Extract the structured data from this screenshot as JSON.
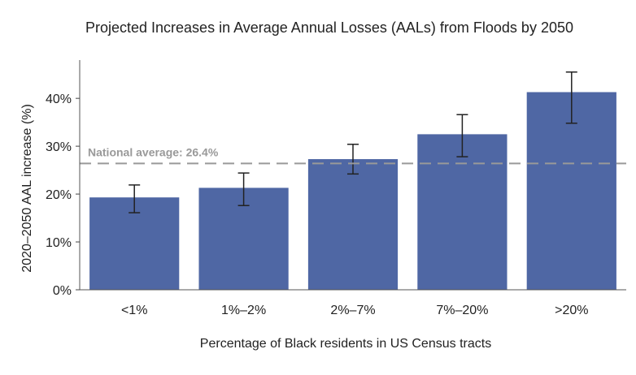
{
  "chart_data": {
    "type": "bar",
    "title": "Projected Increases in Average Annual Losses (AALs) from Floods by 2050",
    "xlabel": "Percentage of Black residents in US Census tracts",
    "ylabel": "2020–2050 AAL increase (%)",
    "categories": [
      "<1%",
      "1%–2%",
      "2%–7%",
      "7%–20%",
      ">20%"
    ],
    "values": [
      19.3,
      21.3,
      27.3,
      32.5,
      41.3
    ],
    "error_low": [
      16.1,
      17.6,
      24.2,
      27.8,
      34.8
    ],
    "error_high": [
      21.9,
      24.4,
      30.4,
      36.6,
      45.5
    ],
    "ylim": [
      0,
      48
    ],
    "yticks": [
      0,
      10,
      20,
      30,
      40
    ],
    "ytick_labels": [
      "0%",
      "10%",
      "20%",
      "30%",
      "40%"
    ],
    "grid": false,
    "bar_color": "#4f67a4",
    "error_color": "#222222",
    "reference_line": {
      "value": 26.4,
      "label": "National average: 26.4%",
      "color": "#999999",
      "style": "dashed"
    }
  }
}
